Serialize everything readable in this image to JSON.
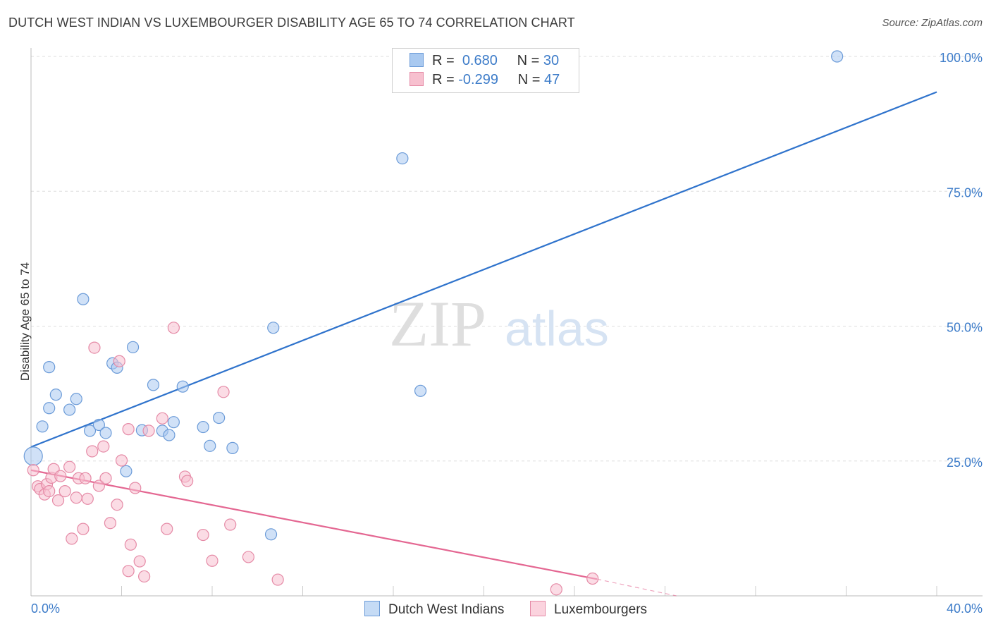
{
  "header": {
    "title": "DUTCH WEST INDIAN VS LUXEMBOURGER DISABILITY AGE 65 TO 74 CORRELATION CHART",
    "source": "Source: ZipAtlas.com"
  },
  "watermark": {
    "zip": "ZIP",
    "atlas": "atlas"
  },
  "legend": {
    "rows": [
      {
        "r_label": "R =",
        "r_value": "0.680",
        "n_label": "N =",
        "n_value": "30",
        "color": "#a9c9f0",
        "border": "#6b9bd8"
      },
      {
        "r_label": "R =",
        "r_value": "-0.299",
        "n_label": "N =",
        "n_value": "47",
        "color": "#f7c0cf",
        "border": "#e58aa6"
      }
    ]
  },
  "bottom_legend": [
    {
      "label": "Dutch West Indians",
      "color": "#c5dbf5",
      "border": "#6b9bd8"
    },
    {
      "label": "Luxembourgers",
      "color": "#fbd3de",
      "border": "#e58aa6"
    }
  ],
  "chart_data": {
    "type": "scatter",
    "title": "DUTCH WEST INDIAN VS LUXEMBOURGER DISABILITY AGE 65 TO 74 CORRELATION CHART",
    "xlabel": "",
    "ylabel": "Disability Age 65 to 74",
    "xlim": [
      0,
      40
    ],
    "ylim": [
      0,
      100
    ],
    "x_tick_labels": [
      "0.0%",
      "40.0%"
    ],
    "y_ticks": [
      25,
      50,
      75,
      100
    ],
    "y_tick_labels": [
      "25.0%",
      "50.0%",
      "75.0%",
      "100.0%"
    ],
    "grid": true,
    "legend_position": "top-center",
    "series": [
      {
        "name": "Dutch West Indians",
        "color": "#6b9bd8",
        "fill": "#a9c9f0",
        "trend_color": "#2f73cc",
        "trend": {
          "x": [
            0,
            40
          ],
          "y": [
            27.6,
            93.4
          ]
        },
        "points": [
          [
            0.1,
            25.9
          ],
          [
            0.5,
            31.4
          ],
          [
            0.8,
            42.4
          ],
          [
            0.8,
            34.8
          ],
          [
            1.1,
            37.3
          ],
          [
            1.7,
            34.5
          ],
          [
            2.0,
            36.5
          ],
          [
            2.3,
            55.0
          ],
          [
            2.6,
            30.6
          ],
          [
            3.0,
            31.7
          ],
          [
            3.3,
            30.2
          ],
          [
            3.6,
            43.1
          ],
          [
            3.8,
            42.3
          ],
          [
            4.2,
            23.1
          ],
          [
            4.5,
            46.1
          ],
          [
            4.9,
            30.7
          ],
          [
            5.4,
            39.1
          ],
          [
            5.8,
            30.6
          ],
          [
            6.1,
            29.8
          ],
          [
            6.3,
            32.2
          ],
          [
            6.7,
            38.8
          ],
          [
            7.6,
            31.3
          ],
          [
            7.9,
            27.8
          ],
          [
            8.3,
            33.0
          ],
          [
            8.9,
            27.4
          ],
          [
            10.7,
            49.7
          ],
          [
            10.6,
            11.4
          ],
          [
            16.4,
            81.1
          ],
          [
            17.2,
            38.0
          ],
          [
            35.6,
            100.0
          ]
        ]
      },
      {
        "name": "Luxembourgers",
        "color": "#e58aa6",
        "fill": "#f7c0cf",
        "trend_color": "#e46792",
        "trend": {
          "x": [
            0,
            25
          ],
          "y": [
            23.3,
            3.1
          ]
        },
        "trend_dashed": {
          "x": [
            25,
            28.5
          ],
          "y": [
            3.1,
            0.0
          ]
        },
        "points": [
          [
            0.1,
            23.3
          ],
          [
            0.3,
            20.3
          ],
          [
            0.4,
            19.8
          ],
          [
            0.6,
            18.8
          ],
          [
            0.7,
            20.7
          ],
          [
            0.8,
            19.4
          ],
          [
            0.9,
            21.9
          ],
          [
            1.0,
            23.5
          ],
          [
            1.2,
            17.7
          ],
          [
            1.3,
            22.2
          ],
          [
            1.5,
            19.4
          ],
          [
            1.7,
            23.9
          ],
          [
            1.8,
            10.6
          ],
          [
            2.0,
            18.2
          ],
          [
            2.1,
            21.8
          ],
          [
            2.3,
            12.4
          ],
          [
            2.4,
            21.8
          ],
          [
            2.5,
            18.0
          ],
          [
            2.7,
            26.8
          ],
          [
            2.8,
            46.0
          ],
          [
            3.0,
            20.4
          ],
          [
            3.2,
            27.7
          ],
          [
            3.3,
            21.8
          ],
          [
            3.5,
            13.5
          ],
          [
            3.8,
            16.9
          ],
          [
            3.9,
            43.5
          ],
          [
            4.0,
            25.1
          ],
          [
            4.3,
            4.6
          ],
          [
            4.3,
            30.9
          ],
          [
            4.4,
            9.5
          ],
          [
            4.6,
            20.0
          ],
          [
            4.8,
            6.4
          ],
          [
            5.0,
            3.6
          ],
          [
            5.2,
            30.6
          ],
          [
            5.8,
            32.9
          ],
          [
            6.0,
            12.4
          ],
          [
            6.3,
            49.7
          ],
          [
            6.8,
            22.1
          ],
          [
            6.9,
            21.3
          ],
          [
            7.6,
            11.3
          ],
          [
            8.0,
            6.5
          ],
          [
            8.5,
            37.8
          ],
          [
            8.8,
            13.2
          ],
          [
            9.6,
            7.2
          ],
          [
            10.9,
            3.0
          ],
          [
            23.2,
            1.2
          ],
          [
            24.8,
            3.2
          ]
        ]
      }
    ]
  }
}
